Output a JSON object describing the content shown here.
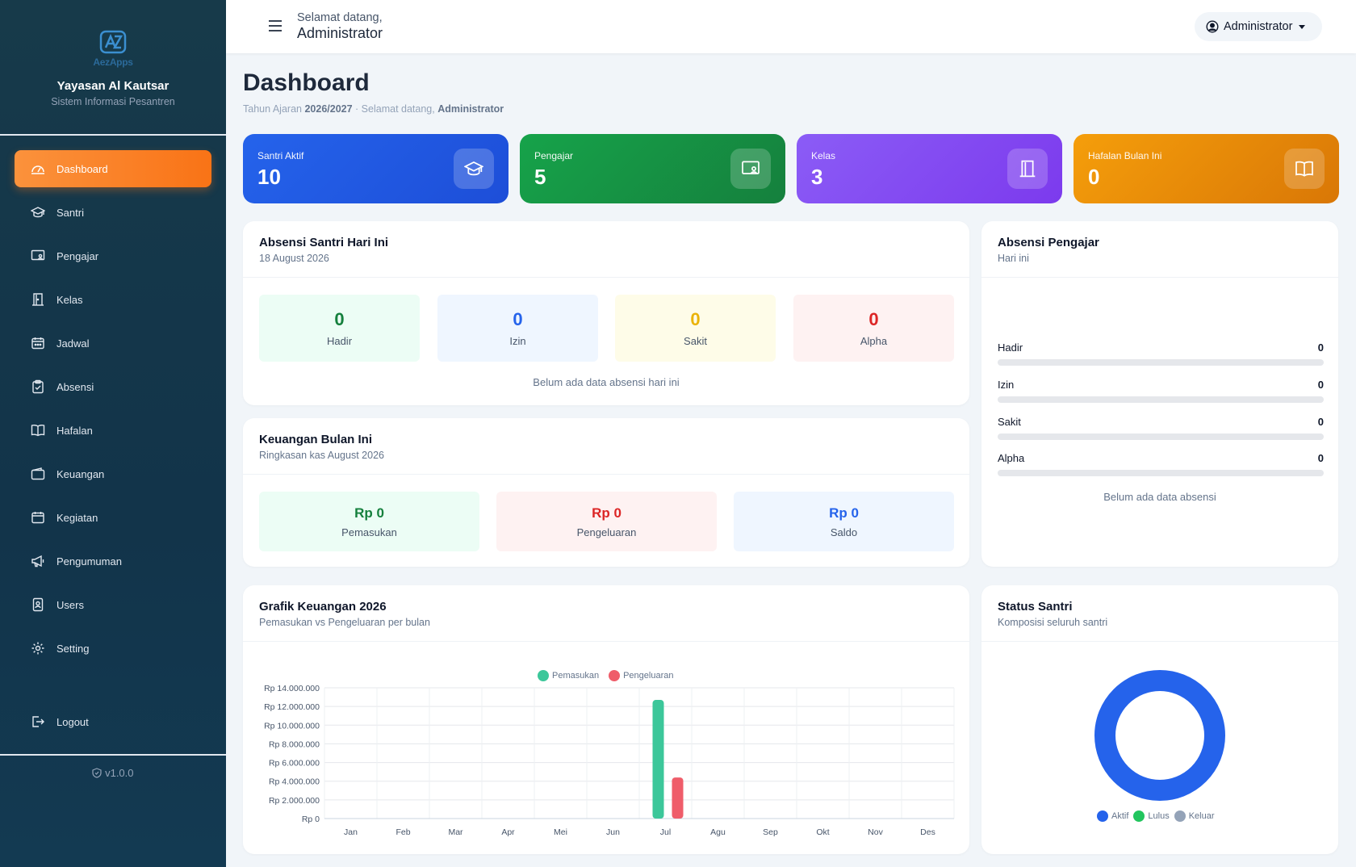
{
  "brand": {
    "logo_text": "AezApps",
    "name": "Yayasan Al Kautsar",
    "subtitle": "Sistem Informasi Pesantren"
  },
  "sidebar": {
    "items": [
      {
        "label": "Dashboard",
        "icon": "dashboard-icon",
        "active": true
      },
      {
        "label": "Santri",
        "icon": "graduation-cap-icon"
      },
      {
        "label": "Pengajar",
        "icon": "teacher-board-icon"
      },
      {
        "label": "Kelas",
        "icon": "door-icon"
      },
      {
        "label": "Jadwal",
        "icon": "calendar-icon"
      },
      {
        "label": "Absensi",
        "icon": "clipboard-check-icon"
      },
      {
        "label": "Hafalan",
        "icon": "book-open-icon"
      },
      {
        "label": "Keuangan",
        "icon": "wallet-icon"
      },
      {
        "label": "Kegiatan",
        "icon": "calendar-event-icon"
      },
      {
        "label": "Pengumuman",
        "icon": "megaphone-icon"
      },
      {
        "label": "Users",
        "icon": "user-badge-icon"
      },
      {
        "label": "Setting",
        "icon": "gear-icon"
      }
    ],
    "logout": "Logout",
    "version": "v1.0.0"
  },
  "topbar": {
    "welcome_small": "Selamat datang,",
    "welcome_name": "Administrator",
    "user_menu": "Administrator"
  },
  "header": {
    "title": "Dashboard",
    "sub_prefix": "Tahun Ajaran",
    "year": "2026/2027",
    "sub_mid": "· Selamat datang,",
    "sub_name": "Administrator"
  },
  "stats": [
    {
      "label": "Santri Aktif",
      "value": "10",
      "icon": "graduation-cap-icon",
      "color_from": "#2563eb",
      "color_to": "#1d4ed8"
    },
    {
      "label": "Pengajar",
      "value": "5",
      "icon": "teacher-board-icon",
      "color_from": "#16a34a",
      "color_to": "#15803d"
    },
    {
      "label": "Kelas",
      "value": "3",
      "icon": "door-icon",
      "color_from": "#8b5cf6",
      "color_to": "#7c3aed"
    },
    {
      "label": "Hafalan Bulan Ini",
      "value": "0",
      "icon": "book-open-icon",
      "color_from": "#f59e0b",
      "color_to": "#d97706"
    }
  ],
  "absensi_santri": {
    "title": "Absensi Santri Hari Ini",
    "date": "18 August 2026",
    "tiles": [
      {
        "value": "0",
        "label": "Hadir",
        "color": "#15803d",
        "bg": "#ecfdf5"
      },
      {
        "value": "0",
        "label": "Izin",
        "color": "#2563eb",
        "bg": "#eff6ff"
      },
      {
        "value": "0",
        "label": "Sakit",
        "color": "#eab308",
        "bg": "#fefce8"
      },
      {
        "value": "0",
        "label": "Alpha",
        "color": "#dc2626",
        "bg": "#fef2f2"
      }
    ],
    "empty": "Belum ada data absensi hari ini"
  },
  "absensi_pengajar": {
    "title": "Absensi Pengajar",
    "sub": "Hari ini",
    "rows": [
      {
        "label": "Hadir",
        "value": "0",
        "fraction": 0
      },
      {
        "label": "Izin",
        "value": "0",
        "fraction": 0
      },
      {
        "label": "Sakit",
        "value": "0",
        "fraction": 0
      },
      {
        "label": "Alpha",
        "value": "0",
        "fraction": 0
      }
    ],
    "empty": "Belum ada data absensi"
  },
  "keuangan": {
    "title": "Keuangan Bulan Ini",
    "sub": "Ringkasan kas August 2026",
    "tiles": [
      {
        "value": "Rp 0",
        "label": "Pemasukan",
        "color": "#15803d",
        "bg": "#ecfdf5"
      },
      {
        "value": "Rp 0",
        "label": "Pengeluaran",
        "color": "#dc2626",
        "bg": "#fef2f2"
      },
      {
        "value": "Rp 0",
        "label": "Saldo",
        "color": "#2563eb",
        "bg": "#eff6ff"
      }
    ]
  },
  "grafik": {
    "title": "Grafik Keuangan 2026",
    "sub": "Pemasukan vs Pengeluaran per bulan"
  },
  "status_santri": {
    "title": "Status Santri",
    "sub": "Komposisi seluruh santri",
    "legend": [
      {
        "label": "Aktif",
        "color": "#2563eb"
      },
      {
        "label": "Lulus",
        "color": "#22c55e"
      },
      {
        "label": "Keluar",
        "color": "#94a3b8"
      }
    ]
  },
  "chart_data": [
    {
      "type": "bar",
      "categories": [
        "Jan",
        "Feb",
        "Mar",
        "Apr",
        "Mei",
        "Jun",
        "Jul",
        "Agu",
        "Sep",
        "Okt",
        "Nov",
        "Des"
      ],
      "series": [
        {
          "name": "Pemasukan",
          "color": "#3cc79a",
          "values": [
            0,
            0,
            0,
            0,
            0,
            0,
            12700000,
            0,
            0,
            0,
            0,
            0
          ]
        },
        {
          "name": "Pengeluaran",
          "color": "#ef5d6a",
          "values": [
            0,
            0,
            0,
            0,
            0,
            0,
            4400000,
            0,
            0,
            0,
            0,
            0
          ]
        }
      ],
      "yticks": [
        "Rp 0",
        "Rp 2.000.000",
        "Rp 4.000.000",
        "Rp 6.000.000",
        "Rp 8.000.000",
        "Rp 10.000.000",
        "Rp 12.000.000",
        "Rp 14.000.000"
      ],
      "ylim": [
        0,
        14000000
      ],
      "grid": true,
      "legend_position": "top-center"
    },
    {
      "type": "pie",
      "labels": [
        "Aktif",
        "Lulus",
        "Keluar"
      ],
      "values": [
        10,
        0,
        0
      ],
      "colors": [
        "#2563eb",
        "#22c55e",
        "#94a3b8"
      ],
      "legend_position": "bottom"
    }
  ]
}
